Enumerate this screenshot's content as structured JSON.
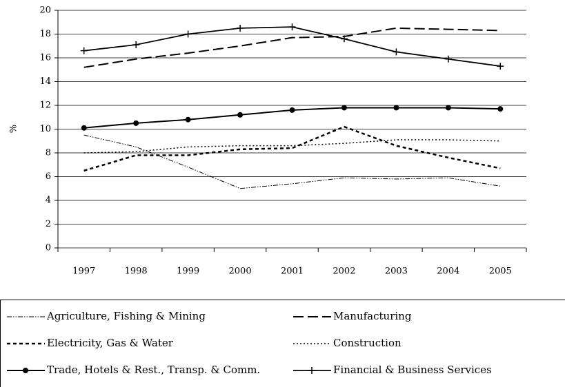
{
  "chart_data": {
    "type": "line",
    "y_label": "%",
    "categories": [
      "1997",
      "1998",
      "1999",
      "2000",
      "2001",
      "2002",
      "2003",
      "2004",
      "2005"
    ],
    "ylim": [
      0,
      20
    ],
    "yticks": [
      0,
      2,
      4,
      6,
      8,
      10,
      12,
      14,
      16,
      18,
      20
    ],
    "grid": true,
    "series": [
      {
        "name": "Agriculture, Fishing & Mining",
        "color": "#000000",
        "style": "dash-dot-dot",
        "values": [
          9.5,
          8.5,
          6.8,
          5.0,
          5.4,
          5.9,
          5.8,
          5.9,
          5.2
        ]
      },
      {
        "name": "Manufacturing",
        "color": "#000000",
        "style": "long-dash",
        "values": [
          15.2,
          15.9,
          16.4,
          17.0,
          17.7,
          17.8,
          18.5,
          18.4,
          18.3
        ]
      },
      {
        "name": "Electricity, Gas & Water",
        "color": "#000000",
        "style": "dash",
        "values": [
          6.5,
          7.8,
          7.8,
          8.3,
          8.4,
          10.2,
          8.6,
          7.6,
          6.7
        ]
      },
      {
        "name": "Construction",
        "color": "#000000",
        "style": "dot",
        "values": [
          8.0,
          8.1,
          8.5,
          8.6,
          8.6,
          8.8,
          9.1,
          9.1,
          9.0
        ]
      },
      {
        "name": "Trade, Hotels & Rest., Transp. & Comm.",
        "color": "#000000",
        "style": "solid-circle",
        "values": [
          10.1,
          10.5,
          10.8,
          11.2,
          11.6,
          11.8,
          11.8,
          11.8,
          11.7
        ]
      },
      {
        "name": "Financial & Business Services",
        "color": "#000000",
        "style": "solid-plus",
        "values": [
          16.6,
          17.1,
          18.0,
          18.5,
          18.6,
          17.6,
          16.5,
          15.9,
          15.3
        ]
      }
    ]
  }
}
